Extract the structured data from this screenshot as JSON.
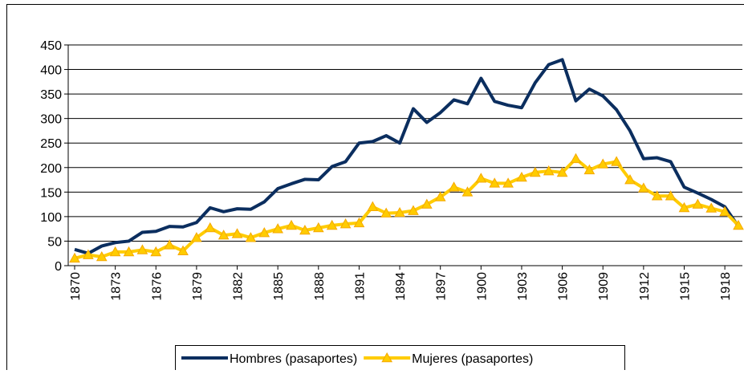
{
  "chart_data": {
    "type": "line",
    "x": [
      1870,
      1871,
      1872,
      1873,
      1874,
      1875,
      1876,
      1877,
      1878,
      1879,
      1880,
      1881,
      1882,
      1883,
      1884,
      1885,
      1886,
      1887,
      1888,
      1889,
      1890,
      1891,
      1892,
      1893,
      1894,
      1895,
      1896,
      1897,
      1898,
      1899,
      1900,
      1901,
      1902,
      1903,
      1904,
      1905,
      1906,
      1907,
      1908,
      1909,
      1910,
      1911,
      1912,
      1913,
      1914,
      1915,
      1916,
      1917,
      1918,
      1919
    ],
    "xlim": [
      1870,
      1919
    ],
    "xticks": [
      1870,
      1873,
      1876,
      1879,
      1882,
      1885,
      1888,
      1891,
      1894,
      1897,
      1900,
      1903,
      1906,
      1909,
      1912,
      1915,
      1918
    ],
    "ylim": [
      0,
      450
    ],
    "yticks": [
      0,
      50,
      100,
      150,
      200,
      250,
      300,
      350,
      400,
      450
    ],
    "grid": true,
    "legend": "bottom",
    "series": [
      {
        "name": "Hombres (pasaportes)",
        "color": "#0b2e5f",
        "marker": "none",
        "values": [
          33,
          25,
          40,
          47,
          50,
          68,
          70,
          80,
          79,
          88,
          118,
          110,
          116,
          115,
          130,
          157,
          167,
          176,
          175,
          202,
          212,
          250,
          253,
          265,
          250,
          320,
          292,
          312,
          338,
          330,
          382,
          335,
          327,
          322,
          373,
          410,
          420,
          336,
          360,
          346,
          318,
          275,
          218,
          220,
          212,
          160,
          148,
          135,
          120,
          80
        ]
      },
      {
        "name": "Mujeres (pasaportes)",
        "color": "#ffcc00",
        "marker": "triangle",
        "values": [
          15,
          22,
          18,
          28,
          28,
          32,
          28,
          42,
          30,
          57,
          77,
          62,
          65,
          57,
          67,
          75,
          82,
          72,
          77,
          82,
          85,
          87,
          120,
          107,
          108,
          112,
          125,
          140,
          160,
          150,
          178,
          168,
          168,
          180,
          190,
          193,
          190,
          218,
          195,
          207,
          212,
          175,
          158,
          142,
          142,
          118,
          125,
          117,
          110,
          82
        ]
      }
    ]
  }
}
